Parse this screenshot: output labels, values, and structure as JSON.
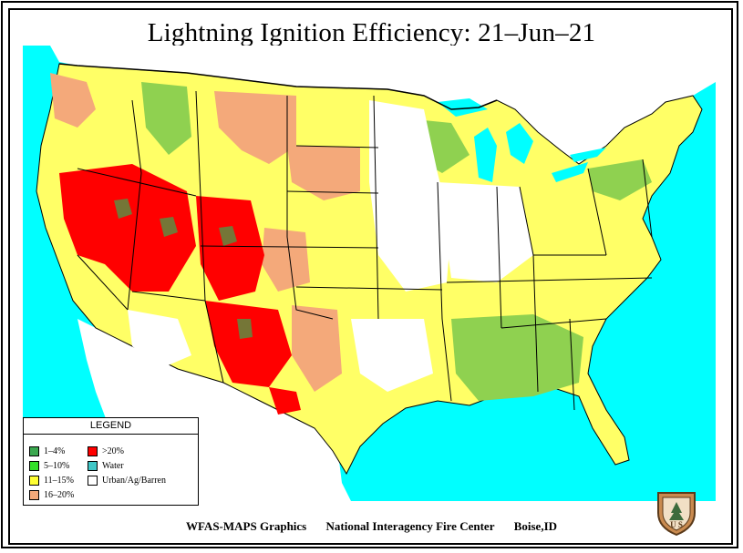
{
  "title": "Lightning Ignition Efficiency: 21–Jun–21",
  "legend": {
    "title": "LEGEND",
    "items": [
      {
        "label": "1–4%",
        "color": "#3aa84f"
      },
      {
        "label": ">20%",
        "color": "#ff0000"
      },
      {
        "label": "5–10%",
        "color": "#33e02a"
      },
      {
        "label": "Water",
        "color": "#40c8c8"
      },
      {
        "label": "11–15%",
        "color": "#ffff33"
      },
      {
        "label": "Urban/Ag/Barren",
        "color": "#ffffff"
      },
      {
        "label": "16–20%",
        "color": "#f4a97a"
      }
    ]
  },
  "footer": {
    "producer": "WFAS-MAPS Graphics",
    "agency": "National Interagency Fire Center",
    "location": "Boise,ID"
  },
  "logo_text": "U S",
  "colors": {
    "water": "#00ffff",
    "low": "#8fd150",
    "moderate": "#ffff66",
    "high": "#f4a97a",
    "extreme": "#ff0000",
    "urban": "#ffffff"
  }
}
